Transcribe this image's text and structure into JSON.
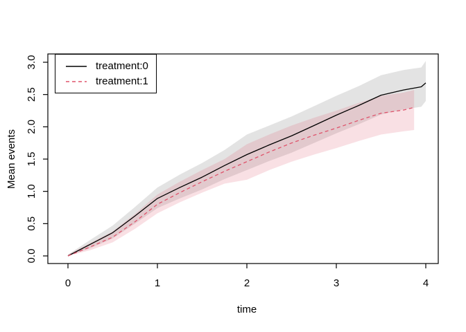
{
  "chart_data": {
    "type": "line",
    "title": "",
    "xlabel": "time",
    "ylabel": "Mean events",
    "xlim": [
      0,
      4
    ],
    "ylim": [
      0,
      3
    ],
    "grid": false,
    "x_ticks": [
      0,
      1,
      2,
      3,
      4
    ],
    "x_tick_labels": [
      "0",
      "1",
      "2",
      "3",
      "4"
    ],
    "y_ticks": [
      0.0,
      0.5,
      1.0,
      1.5,
      2.0,
      2.5,
      3.0
    ],
    "y_tick_labels": [
      "0.0",
      "0.5",
      "1.0",
      "1.5",
      "2.0",
      "2.5",
      "3.0"
    ],
    "legend": {
      "position": "top-left",
      "border": true
    },
    "series": [
      {
        "name": "treatment:0",
        "color": "#000000",
        "line_style": "solid",
        "band_fill": "rgba(128,128,128,0.22)",
        "x": [
          0,
          0.25,
          0.5,
          0.75,
          1.0,
          1.25,
          1.5,
          1.75,
          2.0,
          2.25,
          2.5,
          2.75,
          3.0,
          3.25,
          3.5,
          3.75,
          3.95,
          4.0
        ],
        "y": [
          0,
          0.18,
          0.36,
          0.62,
          0.89,
          1.06,
          1.22,
          1.4,
          1.57,
          1.72,
          1.86,
          2.02,
          2.18,
          2.33,
          2.49,
          2.57,
          2.62,
          2.68
        ],
        "upper": [
          0.02,
          0.25,
          0.47,
          0.76,
          1.06,
          1.26,
          1.44,
          1.64,
          1.88,
          2.02,
          2.16,
          2.32,
          2.48,
          2.63,
          2.8,
          2.88,
          2.92,
          3.02
        ],
        "lower": [
          0,
          0.12,
          0.27,
          0.5,
          0.74,
          0.89,
          1.03,
          1.19,
          1.33,
          1.47,
          1.6,
          1.75,
          1.9,
          2.04,
          2.19,
          2.27,
          2.31,
          2.4
        ]
      },
      {
        "name": "treatment:1",
        "color": "#DF536B",
        "line_style": "dashed",
        "band_fill": "rgba(223,83,107,0.18)",
        "x": [
          0,
          0.25,
          0.5,
          0.75,
          1.0,
          1.25,
          1.5,
          1.75,
          2.0,
          2.25,
          2.5,
          2.75,
          3.0,
          3.25,
          3.5,
          3.75,
          3.87
        ],
        "y": [
          0,
          0.14,
          0.29,
          0.53,
          0.8,
          0.98,
          1.15,
          1.31,
          1.46,
          1.61,
          1.75,
          1.87,
          1.98,
          2.1,
          2.21,
          2.26,
          2.3
        ],
        "upper": [
          0.02,
          0.2,
          0.38,
          0.65,
          0.95,
          1.15,
          1.33,
          1.5,
          1.73,
          1.88,
          2.02,
          2.14,
          2.25,
          2.37,
          2.48,
          2.53,
          2.57
        ],
        "lower": [
          0,
          0.09,
          0.21,
          0.42,
          0.66,
          0.83,
          0.98,
          1.12,
          1.18,
          1.33,
          1.46,
          1.57,
          1.67,
          1.78,
          1.88,
          1.93,
          1.95
        ]
      }
    ]
  }
}
